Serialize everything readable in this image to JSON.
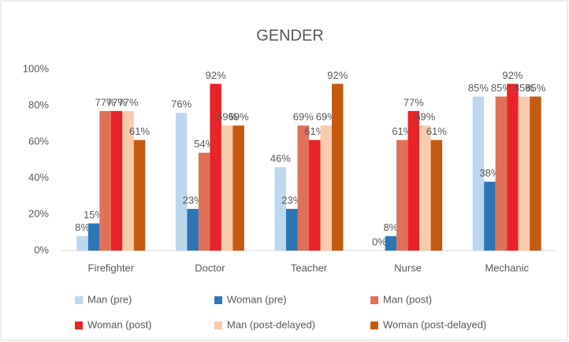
{
  "chart_data": {
    "type": "bar",
    "title": "GENDER",
    "categories": [
      "Firefighter",
      "Doctor",
      "Teacher",
      "Nurse",
      "Mechanic"
    ],
    "series": [
      {
        "name": "Man (pre)",
        "color": "#bdd7ee",
        "values": [
          8,
          76,
          46,
          0,
          85
        ],
        "value_labels": [
          "8%",
          "76%",
          "46%",
          "0%",
          "85%"
        ]
      },
      {
        "name": "Woman (pre)",
        "color": "#2e75b6",
        "values": [
          15,
          23,
          23,
          8,
          38
        ],
        "value_labels": [
          "15%",
          "23%",
          "23%",
          "8%",
          "38%"
        ]
      },
      {
        "name": "Man (post)",
        "color": "#e07058",
        "values": [
          77,
          54,
          69,
          61,
          85
        ],
        "value_labels": [
          "77%",
          "54%",
          "69%",
          "61%",
          "85%"
        ]
      },
      {
        "name": "Woman (post)",
        "color": "#e8232a",
        "values": [
          77,
          92,
          61,
          77,
          92
        ],
        "value_labels": [
          "77%",
          "92%",
          "61%",
          "77%",
          "92%"
        ]
      },
      {
        "name": "Man (post-delayed)",
        "color": "#f8cbad",
        "values": [
          77,
          69,
          69,
          69,
          85
        ],
        "value_labels": [
          "77%",
          "69%",
          "69%",
          "69%",
          "85%"
        ]
      },
      {
        "name": "Woman (post-delayed)",
        "color": "#c55a11",
        "values": [
          61,
          69,
          92,
          61,
          85
        ],
        "value_labels": [
          "61%",
          "69%",
          "92%",
          "61%",
          "85%"
        ]
      }
    ],
    "ylim": [
      0,
      100
    ],
    "yticks": [
      {
        "value": 0,
        "label": "0%"
      },
      {
        "value": 20,
        "label": "20%"
      },
      {
        "value": 40,
        "label": "40%"
      },
      {
        "value": 60,
        "label": "60%"
      },
      {
        "value": 80,
        "label": "80%"
      },
      {
        "value": 100,
        "label": "100%"
      }
    ],
    "grid": false,
    "legend": "bottom"
  }
}
